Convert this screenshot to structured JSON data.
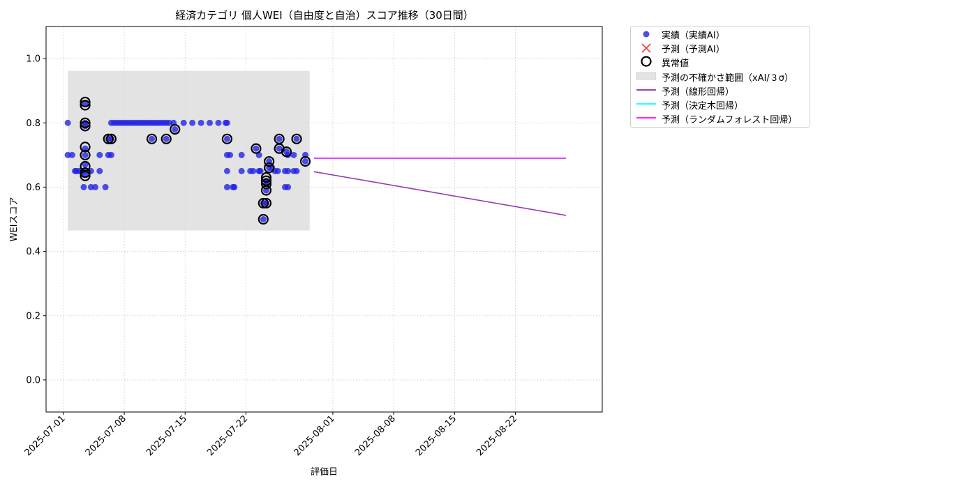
{
  "chart_data": {
    "type": "scatter",
    "title": "経済カテゴリ 個人WEI（自由度と自治）スコア推移（30日間）",
    "xlabel": "評価日",
    "ylabel": "WEIスコア",
    "xlim": [
      "2025-06-29",
      "2025-09-01"
    ],
    "ylim": [
      -0.1,
      1.1
    ],
    "y_ticks": [
      0.0,
      0.2,
      0.4,
      0.6,
      0.8,
      1.0
    ],
    "y_tick_labels": [
      "0.0",
      "0.2",
      "0.4",
      "0.6",
      "0.8",
      "1.0"
    ],
    "x_ticks": [
      "2025-07-01",
      "2025-07-08",
      "2025-07-15",
      "2025-07-22",
      "2025-08-01",
      "2025-08-08",
      "2025-08-15",
      "2025-08-22"
    ],
    "grid": true,
    "legend_position": "outside-top-right",
    "colors": {
      "actual": "#1f1fe6",
      "forecast_marker": "#ff3333",
      "anomaly": "#000000",
      "uncertainty": "#d9d9d9",
      "linear": "#8e24aa",
      "tree": "#00ffff",
      "forest": "#ff00ff"
    },
    "uncertainty_band": {
      "x": [
        "2025-07-01T12:00",
        "2025-07-29T08:00"
      ],
      "y": [
        0.465,
        0.962
      ]
    },
    "series": [
      {
        "name": "実績（実績AI）",
        "kind": "scatter",
        "points": [
          [
            "2025-07-01T12:00",
            0.8
          ],
          [
            "2025-07-01T12:00",
            0.7
          ],
          [
            "2025-07-02T00:00",
            0.7
          ],
          [
            "2025-07-02T08:00",
            0.65
          ],
          [
            "2025-07-02T12:00",
            0.65
          ],
          [
            "2025-07-02T20:00",
            0.65
          ],
          [
            "2025-07-03T08:00",
            0.65
          ],
          [
            "2025-07-03T08:00",
            0.6
          ],
          [
            "2025-07-03T12:00",
            0.72
          ],
          [
            "2025-07-03T12:00",
            0.7
          ],
          [
            "2025-07-03T12:00",
            0.67
          ],
          [
            "2025-07-03T12:00",
            0.64
          ],
          [
            "2025-07-03T12:00",
            0.86
          ],
          [
            "2025-07-03T12:00",
            0.8
          ],
          [
            "2025-07-03T12:00",
            0.79
          ],
          [
            "2025-07-04T04:00",
            0.65
          ],
          [
            "2025-07-04T04:00",
            0.6
          ],
          [
            "2025-07-04T16:00",
            0.6
          ],
          [
            "2025-07-05T04:00",
            0.7
          ],
          [
            "2025-07-05T04:00",
            0.65
          ],
          [
            "2025-07-05T20:00",
            0.6
          ],
          [
            "2025-07-06T04:00",
            0.75
          ],
          [
            "2025-07-06T04:00",
            0.7
          ],
          [
            "2025-07-06T12:00",
            0.8
          ],
          [
            "2025-07-06T12:00",
            0.75
          ],
          [
            "2025-07-06T12:00",
            0.7
          ],
          [
            "2025-07-06T20:00",
            0.8
          ],
          [
            "2025-07-07T04:00",
            0.8
          ],
          [
            "2025-07-07T12:00",
            0.8
          ],
          [
            "2025-07-07T20:00",
            0.8
          ],
          [
            "2025-07-08T04:00",
            0.8
          ],
          [
            "2025-07-08T12:00",
            0.8
          ],
          [
            "2025-07-08T20:00",
            0.8
          ],
          [
            "2025-07-09T04:00",
            0.8
          ],
          [
            "2025-07-09T12:00",
            0.8
          ],
          [
            "2025-07-09T20:00",
            0.8
          ],
          [
            "2025-07-10T04:00",
            0.8
          ],
          [
            "2025-07-10T12:00",
            0.8
          ],
          [
            "2025-07-10T20:00",
            0.8
          ],
          [
            "2025-07-11T04:00",
            0.75
          ],
          [
            "2025-07-11T04:00",
            0.8
          ],
          [
            "2025-07-11T12:00",
            0.8
          ],
          [
            "2025-07-11T20:00",
            0.8
          ],
          [
            "2025-07-12T04:00",
            0.8
          ],
          [
            "2025-07-12T12:00",
            0.8
          ],
          [
            "2025-07-12T20:00",
            0.75
          ],
          [
            "2025-07-12T20:00",
            0.8
          ],
          [
            "2025-07-13T04:00",
            0.8
          ],
          [
            "2025-07-13T16:00",
            0.8
          ],
          [
            "2025-07-13T20:00",
            0.78
          ],
          [
            "2025-07-14T20:00",
            0.8
          ],
          [
            "2025-07-15T20:00",
            0.8
          ],
          [
            "2025-07-16T20:00",
            0.8
          ],
          [
            "2025-07-17T20:00",
            0.8
          ],
          [
            "2025-07-18T20:00",
            0.8
          ],
          [
            "2025-07-19T16:00",
            0.8
          ],
          [
            "2025-07-19T20:00",
            0.8
          ],
          [
            "2025-07-19T20:00",
            0.75
          ],
          [
            "2025-07-19T20:00",
            0.7
          ],
          [
            "2025-07-19T20:00",
            0.65
          ],
          [
            "2025-07-19T20:00",
            0.6
          ],
          [
            "2025-07-20T04:00",
            0.7
          ],
          [
            "2025-07-20T12:00",
            0.6
          ],
          [
            "2025-07-20T16:00",
            0.6
          ],
          [
            "2025-07-21T12:00",
            0.7
          ],
          [
            "2025-07-21T12:00",
            0.65
          ],
          [
            "2025-07-22T12:00",
            0.65
          ],
          [
            "2025-07-22T20:00",
            0.65
          ],
          [
            "2025-07-23T04:00",
            0.72
          ],
          [
            "2025-07-23T12:00",
            0.7
          ],
          [
            "2025-07-23T12:00",
            0.65
          ],
          [
            "2025-07-23T16:00",
            0.65
          ],
          [
            "2025-07-24T00:00",
            0.55
          ],
          [
            "2025-07-24T00:00",
            0.5
          ],
          [
            "2025-07-24T08:00",
            0.62
          ],
          [
            "2025-07-24T08:00",
            0.61
          ],
          [
            "2025-07-24T08:00",
            0.55
          ],
          [
            "2025-07-24T08:00",
            0.59
          ],
          [
            "2025-07-24T16:00",
            0.68
          ],
          [
            "2025-07-24T16:00",
            0.66
          ],
          [
            "2025-07-25T00:00",
            0.66
          ],
          [
            "2025-07-25T08:00",
            0.65
          ],
          [
            "2025-07-25T16:00",
            0.65
          ],
          [
            "2025-07-25T20:00",
            0.75
          ],
          [
            "2025-07-25T20:00",
            0.72
          ],
          [
            "2025-07-26T12:00",
            0.65
          ],
          [
            "2025-07-26T12:00",
            0.6
          ],
          [
            "2025-07-26T16:00",
            0.71
          ],
          [
            "2025-07-26T20:00",
            0.7
          ],
          [
            "2025-07-26T20:00",
            0.65
          ],
          [
            "2025-07-26T20:00",
            0.6
          ],
          [
            "2025-07-27T12:00",
            0.7
          ],
          [
            "2025-07-27T12:00",
            0.65
          ],
          [
            "2025-07-27T20:00",
            0.65
          ],
          [
            "2025-07-27T20:00",
            0.75
          ],
          [
            "2025-07-28T20:00",
            0.7
          ],
          [
            "2025-07-28T20:00",
            0.68
          ]
        ]
      },
      {
        "name": "異常値",
        "kind": "anomaly",
        "points": [
          [
            "2025-07-03T12:00",
            0.865
          ],
          [
            "2025-07-03T12:00",
            0.855
          ],
          [
            "2025-07-03T12:00",
            0.8
          ],
          [
            "2025-07-03T12:00",
            0.79
          ],
          [
            "2025-07-03T12:00",
            0.725
          ],
          [
            "2025-07-03T12:00",
            0.7
          ],
          [
            "2025-07-03T12:00",
            0.665
          ],
          [
            "2025-07-03T12:00",
            0.645
          ],
          [
            "2025-07-03T12:00",
            0.635
          ],
          [
            "2025-07-06T04:00",
            0.75
          ],
          [
            "2025-07-06T12:00",
            0.75
          ],
          [
            "2025-07-11T04:00",
            0.75
          ],
          [
            "2025-07-12T20:00",
            0.75
          ],
          [
            "2025-07-13T20:00",
            0.78
          ],
          [
            "2025-07-19T20:00",
            0.75
          ],
          [
            "2025-07-23T04:00",
            0.72
          ],
          [
            "2025-07-24T00:00",
            0.55
          ],
          [
            "2025-07-24T00:00",
            0.5
          ],
          [
            "2025-07-24T08:00",
            0.63
          ],
          [
            "2025-07-24T08:00",
            0.62
          ],
          [
            "2025-07-24T08:00",
            0.61
          ],
          [
            "2025-07-24T08:00",
            0.59
          ],
          [
            "2025-07-24T08:00",
            0.55
          ],
          [
            "2025-07-24T16:00",
            0.68
          ],
          [
            "2025-07-24T16:00",
            0.66
          ],
          [
            "2025-07-25T20:00",
            0.75
          ],
          [
            "2025-07-25T20:00",
            0.72
          ],
          [
            "2025-07-26T16:00",
            0.71
          ],
          [
            "2025-07-27T20:00",
            0.75
          ],
          [
            "2025-07-28T20:00",
            0.68
          ]
        ]
      },
      {
        "name": "予測（予測AI）",
        "kind": "forecast",
        "points": []
      },
      {
        "name": "予測の不確かさ範囲（xAI/３σ）",
        "kind": "band"
      },
      {
        "name": "予測（線形回帰）",
        "kind": "line",
        "points": [
          [
            "2025-07-29T20:00",
            0.648
          ],
          [
            "2025-08-27T20:00",
            0.512
          ]
        ]
      },
      {
        "name": "予測（決定木回帰）",
        "kind": "line",
        "points": [
          [
            "2025-07-29T20:00",
            0.69
          ],
          [
            "2025-08-27T20:00",
            0.69
          ]
        ]
      },
      {
        "name": "予測（ランダムフォレスト回帰）",
        "kind": "line",
        "points": [
          [
            "2025-07-29T20:00",
            0.69
          ],
          [
            "2025-08-27T20:00",
            0.69
          ]
        ]
      }
    ]
  },
  "legend": [
    {
      "label": "実績（実績AI）",
      "icon": "dot"
    },
    {
      "label": "予測（予測AI）",
      "icon": "cross"
    },
    {
      "label": "異常値",
      "icon": "ring"
    },
    {
      "label": "予測の不確かさ範囲（xAI/３σ）",
      "icon": "patch"
    },
    {
      "label": "予測（線形回帰）",
      "icon": "line-purple"
    },
    {
      "label": "予測（決定木回帰）",
      "icon": "line-cyan"
    },
    {
      "label": "予測（ランダムフォレスト回帰）",
      "icon": "line-magenta"
    }
  ]
}
